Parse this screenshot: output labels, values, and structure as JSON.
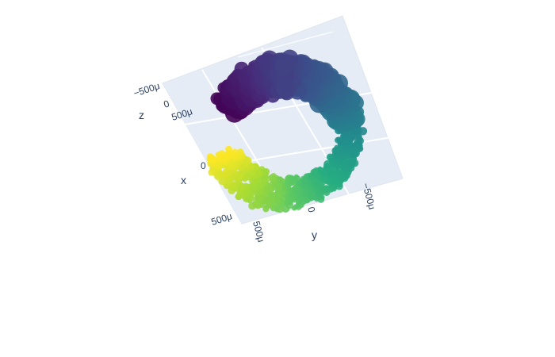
{
  "chart_data": {
    "type": "scatter3d",
    "colorscale": "viridis",
    "background_color": "#e5ecf6",
    "grid_color": "#ffffff",
    "text_color": "#2a3f5f",
    "axes": {
      "x": {
        "title": "x",
        "ticks": [
          "0",
          "500μ"
        ]
      },
      "y": {
        "title": "y",
        "ticks": [
          "−500μ",
          "0",
          "500μ"
        ]
      },
      "z": {
        "title": "z",
        "ticks": [
          "−500μ",
          "0",
          "500μ"
        ]
      }
    },
    "ring": {
      "description_values": "helical torus-like point cloud, colored by parameter t from 0 (dark purple) to 1 (yellow)",
      "t_range": [
        0,
        1
      ],
      "marker_size_range": [
        3,
        12
      ]
    }
  }
}
